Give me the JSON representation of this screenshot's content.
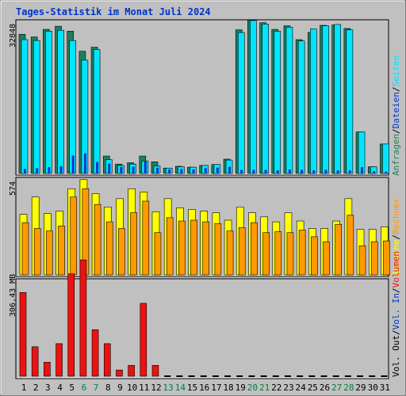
{
  "title": "Tages-Statistik im Monat Juli 2024",
  "colors": {
    "background": "#c0c0c0",
    "title": "#0033cc",
    "weekday_label": "#000000",
    "weekend_label": "#008040",
    "anfragen": "#1f7f5c",
    "dateien": "#0033cc",
    "seiten": "#00e5ff",
    "besuche": "#ffff00",
    "rechner": "#ff9900",
    "vol_out": "#000000",
    "vol_in": "#0033cc",
    "volumen": "#ee1111"
  },
  "chart_data": [
    {
      "type": "bar",
      "name": "top-panel",
      "ytick_label": "32848",
      "ymax": 32848,
      "categories": [
        "1",
        "2",
        "3",
        "4",
        "5",
        "6",
        "7",
        "8",
        "9",
        "10",
        "11",
        "12",
        "13",
        "14",
        "15",
        "16",
        "17",
        "18",
        "19",
        "20",
        "21",
        "22",
        "23",
        "24",
        "25",
        "26",
        "27",
        "28",
        "29",
        "30",
        "31"
      ],
      "weekend_days": [
        6,
        7,
        13,
        14,
        20,
        21,
        27,
        28
      ],
      "series": [
        {
          "name": "Anfragen",
          "values": [
            31200,
            30600,
            32300,
            33000,
            31900,
            27400,
            28300,
            3900,
            2100,
            2400,
            3900,
            2600,
            1200,
            1600,
            1400,
            1800,
            2000,
            3200,
            32200,
            34400,
            33800,
            32300,
            33100,
            30000,
            31600,
            33200,
            33300,
            32500,
            9300,
            1500,
            6600
          ]
        },
        {
          "name": "Dateien",
          "values": [
            1000,
            1200,
            1400,
            1600,
            4000,
            4500,
            2600,
            2200,
            1500,
            1500,
            2700,
            1300,
            900,
            1000,
            900,
            1200,
            1300,
            1500,
            800,
            800,
            800,
            700,
            900,
            800,
            700,
            800,
            700,
            700,
            1400,
            500,
            400
          ]
        },
        {
          "name": "Seiten",
          "values": [
            30000,
            29800,
            31900,
            32100,
            29800,
            25400,
            27800,
            3100,
            1800,
            2100,
            2800,
            1700,
            1200,
            1500,
            1400,
            1800,
            2000,
            3000,
            31600,
            34300,
            33500,
            31900,
            32800,
            29700,
            32400,
            33100,
            33400,
            32200,
            9300,
            1500,
            6600
          ]
        }
      ]
    },
    {
      "type": "bar",
      "name": "middle-panel",
      "ytick_label": "574",
      "ymax": 574,
      "categories": [
        "1",
        "2",
        "3",
        "4",
        "5",
        "6",
        "7",
        "8",
        "9",
        "10",
        "11",
        "12",
        "13",
        "14",
        "15",
        "16",
        "17",
        "18",
        "19",
        "20",
        "21",
        "22",
        "23",
        "24",
        "25",
        "26",
        "27",
        "28",
        "29",
        "30",
        "31"
      ],
      "series": [
        {
          "name": "Besuche",
          "values": [
            365,
            470,
            370,
            385,
            520,
            575,
            490,
            410,
            460,
            520,
            500,
            380,
            460,
            405,
            395,
            385,
            375,
            330,
            410,
            375,
            350,
            320,
            375,
            325,
            280,
            280,
            325,
            460,
            275,
            275,
            290
          ]
        },
        {
          "name": "Rechner",
          "values": [
            315,
            280,
            265,
            295,
            470,
            520,
            425,
            320,
            280,
            375,
            445,
            255,
            345,
            325,
            330,
            320,
            310,
            265,
            285,
            315,
            255,
            260,
            255,
            270,
            230,
            200,
            305,
            360,
            175,
            200,
            205
          ]
        }
      ]
    },
    {
      "type": "bar",
      "name": "bottom-panel",
      "ytick_label": "306.43 MB",
      "ymax": 306.43,
      "categories": [
        "1",
        "2",
        "3",
        "4",
        "5",
        "6",
        "7",
        "8",
        "9",
        "10",
        "11",
        "12",
        "13",
        "14",
        "15",
        "16",
        "17",
        "18",
        "19",
        "20",
        "21",
        "22",
        "23",
        "24",
        "25",
        "26",
        "27",
        "28",
        "29",
        "30",
        "31"
      ],
      "series": [
        {
          "name": "Volumen",
          "values": [
            270,
            95,
            45,
            105,
            330,
            375,
            150,
            105,
            20,
            35,
            235,
            35,
            0,
            0,
            0,
            0,
            0,
            0,
            0,
            0,
            0,
            0,
            0,
            0,
            0,
            0,
            0,
            0,
            0,
            0,
            0
          ]
        }
      ]
    }
  ],
  "legend": {
    "top": [
      {
        "label": "Anfragen",
        "color_key": "anfragen"
      },
      {
        "label": "Dateien",
        "color_key": "dateien"
      },
      {
        "label": "Seiten",
        "color_key": "seiten"
      }
    ],
    "middle": [
      {
        "label": "Besuche",
        "color_key": "besuche"
      },
      {
        "label": "Rechner",
        "color_key": "rechner"
      }
    ],
    "bottom": [
      {
        "label": "Vol. Out",
        "color_key": "vol_out"
      },
      {
        "label": "Vol. In",
        "color_key": "vol_in"
      },
      {
        "label": "Volumen",
        "color_key": "volumen"
      }
    ],
    "separator": "/"
  }
}
